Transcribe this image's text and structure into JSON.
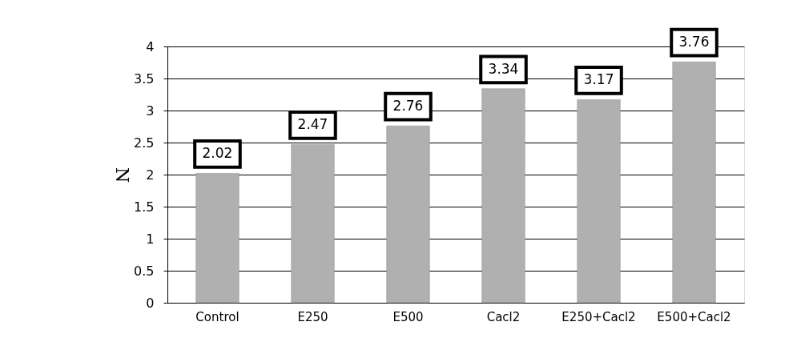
{
  "chart_data": {
    "type": "bar",
    "ylabel": "N",
    "categories": [
      "Control",
      "E250",
      "E500",
      "Cacl2",
      "E250+Cacl2",
      "E500+Cacl2"
    ],
    "values": [
      2.02,
      2.47,
      2.76,
      3.34,
      3.17,
      3.76
    ],
    "color": "#b0b0b0",
    "ylim": [
      0,
      4
    ],
    "yticks": [
      0,
      0.5,
      1,
      1.5,
      2,
      2.5,
      3,
      3.5,
      4
    ],
    "grid": "y",
    "data_labels": true
  }
}
